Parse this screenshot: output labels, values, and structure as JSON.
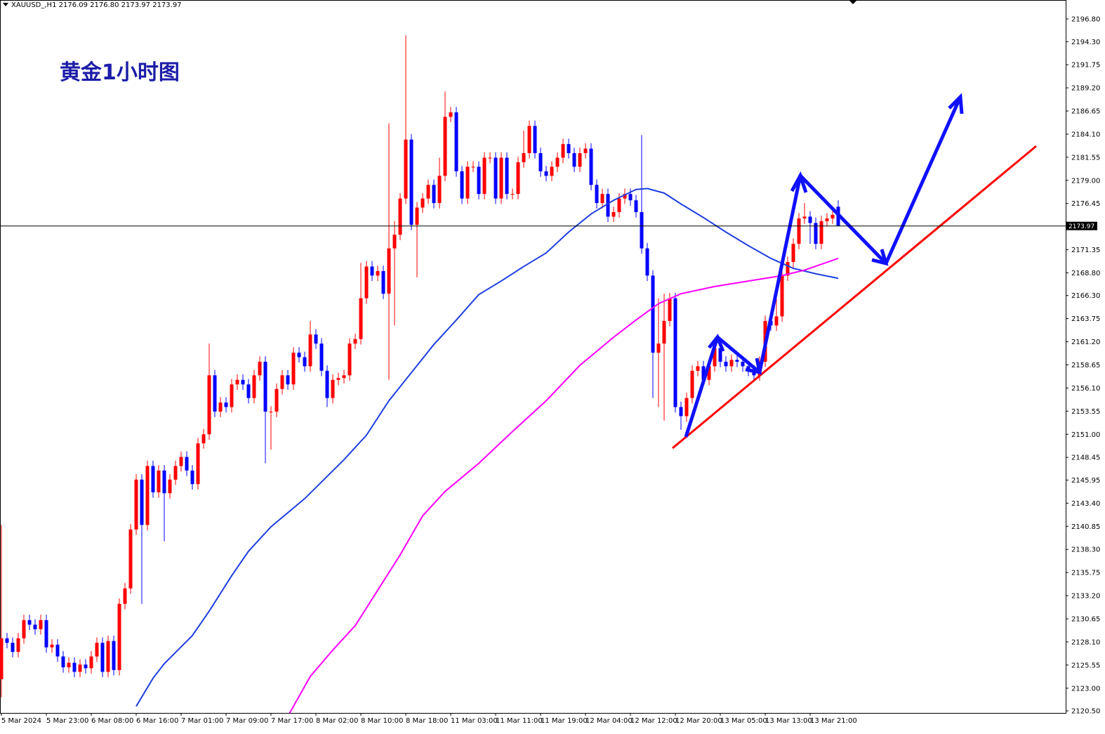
{
  "chart_data": {
    "type": "candlestick",
    "header": "XAUUSD_,H1  2176.09 2176.80 2173.97 2173.97",
    "title": "黄金1小时图",
    "up_color": "#ff0000",
    "down_color": "#0000ff",
    "current_price": 2173.97,
    "ylim": [
      2120.27,
      2198.89
    ],
    "yticks": [
      {
        "value": 2196.8,
        "label": "2196.80"
      },
      {
        "value": 2194.3,
        "label": "2194.30"
      },
      {
        "value": 2191.75,
        "label": "2191.75"
      },
      {
        "value": 2189.2,
        "label": "2189.20"
      },
      {
        "value": 2186.65,
        "label": "2186.65"
      },
      {
        "value": 2184.1,
        "label": "2184.10"
      },
      {
        "value": 2181.55,
        "label": "2181.55"
      },
      {
        "value": 2179,
        "label": "2179.00"
      },
      {
        "value": 2176.45,
        "label": "2176.45"
      },
      {
        "value": 2171.35,
        "label": "2171.35"
      },
      {
        "value": 2168.8,
        "label": "2168.80"
      },
      {
        "value": 2166.3,
        "label": "2166.30"
      },
      {
        "value": 2163.75,
        "label": "2163.75"
      },
      {
        "value": 2161.2,
        "label": "2161.20"
      },
      {
        "value": 2158.65,
        "label": "2158.65"
      },
      {
        "value": 2156.1,
        "label": "2156.10"
      },
      {
        "value": 2153.55,
        "label": "2153.55"
      },
      {
        "value": 2151,
        "label": "2151.00"
      },
      {
        "value": 2148.45,
        "label": "2148.45"
      },
      {
        "value": 2145.95,
        "label": "2145.95"
      },
      {
        "value": 2143.4,
        "label": "2143.40"
      },
      {
        "value": 2140.85,
        "label": "2140.85"
      },
      {
        "value": 2138.3,
        "label": "2138.30"
      },
      {
        "value": 2135.75,
        "label": "2135.75"
      },
      {
        "value": 2133.2,
        "label": "2133.20"
      },
      {
        "value": 2130.65,
        "label": "2130.65"
      },
      {
        "value": 2128.1,
        "label": "2128.10"
      },
      {
        "value": 2125.55,
        "label": "2125.55"
      },
      {
        "value": 2123,
        "label": "2123.00"
      },
      {
        "value": 2120.5,
        "label": "2120.50"
      }
    ],
    "categories": [
      "5 Mar 2024",
      null,
      null,
      null,
      null,
      null,
      null,
      null,
      "5 Mar 23:00",
      null,
      null,
      null,
      null,
      null,
      null,
      null,
      "6 Mar 08:00",
      null,
      null,
      null,
      null,
      null,
      null,
      null,
      "6 Mar 16:00",
      null,
      null,
      null,
      null,
      null,
      null,
      null,
      "7 Mar 01:00",
      null,
      null,
      null,
      null,
      null,
      null,
      null,
      "7 Mar 09:00",
      null,
      null,
      null,
      null,
      null,
      null,
      null,
      "7 Mar 17:00",
      null,
      null,
      null,
      null,
      null,
      null,
      null,
      "8 Mar 02:00",
      null,
      null,
      null,
      null,
      null,
      null,
      null,
      "8 Mar 10:00",
      null,
      null,
      null,
      null,
      null,
      null,
      null,
      "8 Mar 18:00",
      null,
      null,
      null,
      null,
      null,
      null,
      null,
      "11 Mar 03:00",
      null,
      null,
      null,
      null,
      null,
      null,
      null,
      "11 Mar 11:00",
      null,
      null,
      null,
      null,
      null,
      null,
      null,
      "11 Mar 19:00",
      null,
      null,
      null,
      null,
      null,
      null,
      null,
      "12 Mar 04:00",
      null,
      null,
      null,
      null,
      null,
      null,
      null,
      "12 Mar 12:00",
      null,
      null,
      null,
      null,
      null,
      null,
      null,
      "12 Mar 20:00",
      null,
      null,
      null,
      null,
      null,
      null,
      null,
      "13 Mar 05:00",
      null,
      null,
      null,
      null,
      null,
      null,
      null,
      "13 Mar 13:00",
      null,
      null,
      null,
      null,
      null,
      null,
      null,
      "13 Mar 21:00",
      null,
      null,
      null,
      null,
      null
    ],
    "open": [
      2124,
      2128.5,
      2128,
      2127,
      2128.5,
      2130.5,
      2130,
      2129.5,
      2130.5,
      2127.5,
      2127.8,
      2126.5,
      2125.3,
      2125.8,
      2124.8,
      2125.6,
      2125.2,
      2126.5,
      2128,
      2124.8,
      2128.2,
      2125,
      2132.3,
      2134,
      2140.5,
      2146,
      2141,
      2147.5,
      2144.6,
      2147,
      2144.5,
      2146,
      2147.5,
      2148.5,
      2147,
      2145.5,
      2150,
      2151,
      2157.5,
      2153.5,
      2154.5,
      2154,
      2156.5,
      2157,
      2156.5,
      2155,
      2157.5,
      2159,
      2153.5,
      2153.5,
      2156,
      2157.5,
      2156.5,
      2160,
      2159.5,
      2158.5,
      2162,
      2161,
      2158,
      2155,
      2157,
      2157.2,
      2157.5,
      2161,
      2161.5,
      2166,
      2169.5,
      2168.5,
      2169,
      2166.5,
      2171.5,
      2173,
      2177,
      2183.5,
      2174.1,
      2176,
      2177,
      2178.5,
      2176.5,
      2179.5,
      2186,
      2186.5,
      2180,
      2177,
      2180.5,
      2180.5,
      2177.5,
      2181.5,
      2181.5,
      2177,
      2181.5,
      2177.5,
      2177.5,
      2181,
      2182,
      2185,
      2182,
      2180,
      2179.5,
      2180.5,
      2181.5,
      2183,
      2182,
      2180.5,
      2182,
      2182.5,
      2178.5,
      2176.5,
      2177.5,
      2175,
      2175.5,
      2177,
      2177.5,
      2176.8,
      2175.5,
      2171.5,
      2168.5,
      2160,
      2161,
      2163.5,
      2166,
      2154,
      2153,
      2155,
      2158,
      2158.5,
      2157,
      2158.5,
      2160.5,
      2159,
      2158.5,
      2159.2,
      2159,
      2158.5,
      2158,
      2157.5,
      2159,
      2163.5,
      2163,
      2164,
      2168.5,
      2170,
      2172,
      2174.8,
      2175,
      2174.3,
      2172,
      2174.5,
      2174.8,
      2176.09
    ],
    "high": [
      2141,
      2129.1,
      2128.6,
      2129.1,
      2131.1,
      2131.1,
      2130.6,
      2131.1,
      2131.1,
      2128.4,
      2128.4,
      2127.1,
      2126.4,
      2126.4,
      2126.2,
      2126.2,
      2127.1,
      2128.6,
      2128.6,
      2128.8,
      2128.8,
      2132.9,
      2134.6,
      2141.1,
      2146.6,
      2146.6,
      2148.1,
      2148.1,
      2147.6,
      2147.6,
      2146.6,
      2148.1,
      2149.1,
      2149.1,
      2147.6,
      2150.6,
      2151.6,
      2161,
      2158.1,
      2155.1,
      2155.1,
      2157.1,
      2157.6,
      2157.6,
      2157.1,
      2158.1,
      2159.6,
      2159.6,
      2154.1,
      2156.6,
      2158.1,
      2158.1,
      2160.6,
      2160.6,
      2160.1,
      2163.5,
      2162.6,
      2161.6,
      2158.6,
      2157.6,
      2157.8,
      2158.1,
      2161.6,
      2162.1,
      2169.9,
      2170.1,
      2170.1,
      2169.6,
      2169.6,
      2185.3,
      2174.5,
      2177.6,
      2195,
      2184.1,
      2176.6,
      2177.6,
      2179.1,
      2179.1,
      2181.5,
      2188.8,
      2187.1,
      2187.1,
      2180.6,
      2181.1,
      2181.1,
      2181.1,
      2182.1,
      2182.1,
      2182.1,
      2182.1,
      2182.1,
      2178.1,
      2181.6,
      2184.5,
      2185.6,
      2185.6,
      2182.6,
      2180.6,
      2181.1,
      2182.1,
      2183.6,
      2183.6,
      2182.6,
      2182.6,
      2183.1,
      2183.1,
      2179.1,
      2178.1,
      2178.1,
      2176.1,
      2177.6,
      2178.1,
      2178.1,
      2177.4,
      2184,
      2172.1,
      2169.1,
      2166,
      2166.5,
      2166.6,
      2166.6,
      2154.6,
      2155.6,
      2158.6,
      2159.1,
      2159.1,
      2159.1,
      2161.1,
      2161.1,
      2159.6,
      2159.8,
      2159.8,
      2159.6,
      2159.1,
      2158.6,
      2159.6,
      2164.1,
      2164.1,
      2166.5,
      2169.1,
      2170.6,
      2172.6,
      2175.4,
      2176.5,
      2175.6,
      2174.9,
      2175.1,
      2175.4,
      2175.8,
      2176.8
    ],
    "low": [
      2122,
      2127.4,
      2126.4,
      2126.4,
      2127.9,
      2129.4,
      2128.9,
      2128.9,
      2126.9,
      2126.9,
      2125.9,
      2124.7,
      2124.7,
      2124.2,
      2124.2,
      2124.6,
      2124.6,
      2125.9,
      2124.2,
      2124.2,
      2124.4,
      2124.4,
      2131.7,
      2133.4,
      2139.9,
      2132.3,
      2140.4,
      2144,
      2144,
      2139.2,
      2143.9,
      2145.4,
      2146.9,
      2146.4,
      2144.9,
      2144.9,
      2149.4,
      2150.4,
      2152.9,
      2152.9,
      2153.4,
      2153.4,
      2155.9,
      2155.9,
      2154.4,
      2154.4,
      2156.9,
      2147.8,
      2149.3,
      2152.9,
      2155.4,
      2155.9,
      2155.9,
      2158.9,
      2157.9,
      2157.9,
      2160.4,
      2157.4,
      2154,
      2154.4,
      2156.4,
      2156.6,
      2156.9,
      2160.4,
      2160.9,
      2165.4,
      2167.9,
      2167.9,
      2165.9,
      2157,
      2163,
      2172.4,
      2176.4,
      2173.5,
      2168.3,
      2175.4,
      2176.4,
      2175.9,
      2175.9,
      2178.9,
      2185.4,
      2179.4,
      2176.4,
      2176.4,
      2179.9,
      2176.9,
      2176.9,
      2180.9,
      2176.4,
      2176.4,
      2176.9,
      2176.9,
      2176.9,
      2180.4,
      2181.4,
      2181.4,
      2179.4,
      2178.9,
      2178.9,
      2179.9,
      2180.9,
      2181.4,
      2179.9,
      2179.9,
      2181.4,
      2177.9,
      2175.9,
      2175.9,
      2174.4,
      2174.4,
      2174.9,
      2176.4,
      2176.2,
      2174.9,
      2170.9,
      2167.9,
      2155,
      2154,
      2152.5,
      2162.9,
      2153.4,
      2151.5,
      2152.4,
      2154.4,
      2157.4,
      2156.4,
      2156.4,
      2157.9,
      2158.4,
      2157.9,
      2157.9,
      2158.4,
      2157.9,
      2157.4,
      2156.9,
      2156.9,
      2158.4,
      2162.4,
      2162.4,
      2163.4,
      2167.9,
      2169.4,
      2171.4,
      2174.2,
      2172,
      2171.4,
      2171.4,
      2173.9,
      2174.2,
      2173.97
    ],
    "close": [
      2128.5,
      2128,
      2127,
      2128.5,
      2130.5,
      2130,
      2129.5,
      2130.5,
      2127.5,
      2127.8,
      2126.5,
      2125.3,
      2125.8,
      2124.8,
      2125.6,
      2125.2,
      2126.5,
      2128,
      2124.8,
      2128.2,
      2125,
      2132.3,
      2134,
      2140.5,
      2146,
      2141,
      2147.5,
      2144.6,
      2147,
      2144.5,
      2146,
      2147.5,
      2148.5,
      2147,
      2145.5,
      2150,
      2151,
      2157.5,
      2153.5,
      2154.5,
      2154,
      2156.5,
      2157,
      2156.5,
      2155,
      2157.5,
      2159,
      2153.5,
      2153.5,
      2156,
      2157.5,
      2156.5,
      2160,
      2159.5,
      2158.5,
      2162,
      2161,
      2158,
      2155,
      2157,
      2157.2,
      2157.5,
      2161,
      2161.5,
      2166,
      2169.5,
      2168.5,
      2169,
      2166.5,
      2171.5,
      2173,
      2177,
      2183.5,
      2174.1,
      2176,
      2177,
      2178.5,
      2176.5,
      2179.5,
      2186,
      2186.5,
      2180,
      2177,
      2180.5,
      2180.5,
      2177.5,
      2181.5,
      2181.5,
      2177,
      2181.5,
      2177.5,
      2177.5,
      2181,
      2182,
      2185,
      2182,
      2180,
      2179.5,
      2180.5,
      2181.5,
      2183,
      2182,
      2180.5,
      2182,
      2182.5,
      2178.5,
      2176.5,
      2177.5,
      2175,
      2175.5,
      2177,
      2177.5,
      2176.8,
      2175.5,
      2171.5,
      2168.5,
      2160,
      2161,
      2163.5,
      2166,
      2154,
      2153,
      2155,
      2158,
      2158.5,
      2157,
      2158.5,
      2160.5,
      2159,
      2158.5,
      2159.2,
      2159,
      2158.5,
      2158,
      2157.5,
      2159,
      2163.5,
      2163,
      2164,
      2168.5,
      2170,
      2172,
      2174.8,
      2175,
      2174.3,
      2172,
      2174.5,
      2174.8,
      2175.2,
      2173.97
    ],
    "lines": [
      {
        "color": "#1f3fe0",
        "x": [
          24,
          27,
          29,
          34,
          37,
          41,
          44,
          48,
          54,
          61,
          65,
          69,
          73,
          77,
          81,
          85,
          89,
          93,
          97,
          101,
          105,
          109,
          113,
          115,
          118,
          121,
          125,
          129,
          133,
          137,
          141,
          145,
          149
        ],
        "values": [
          2121,
          2124.1,
          2125.7,
          2128.8,
          2131.5,
          2135.4,
          2138.1,
          2140.8,
          2143.9,
          2148.2,
          2150.9,
          2154.7,
          2157.8,
          2160.9,
          2163.6,
          2166.4,
          2167.9,
          2169.5,
          2171,
          2173.3,
          2175.3,
          2176.8,
          2178,
          2178.1,
          2177.6,
          2176.4,
          2174.9,
          2173.3,
          2171.8,
          2170.4,
          2169.3,
          2168.7,
          2168.2
        ]
      },
      {
        "color": "#ff00ff",
        "x": [
          51,
          55,
          59,
          63,
          67,
          71,
          75,
          79,
          85,
          91,
          97,
          103,
          109,
          113,
          117,
          121,
          127,
          133,
          139,
          143,
          149
        ],
        "values": [
          2119.9,
          2124.3,
          2127.2,
          2129.9,
          2133.8,
          2137.7,
          2142,
          2144.7,
          2147.8,
          2151.3,
          2154.7,
          2158.6,
          2161.7,
          2163.6,
          2165.4,
          2166.5,
          2167.3,
          2167.9,
          2168.5,
          2169.1,
          2170.4
        ]
      }
    ]
  }
}
